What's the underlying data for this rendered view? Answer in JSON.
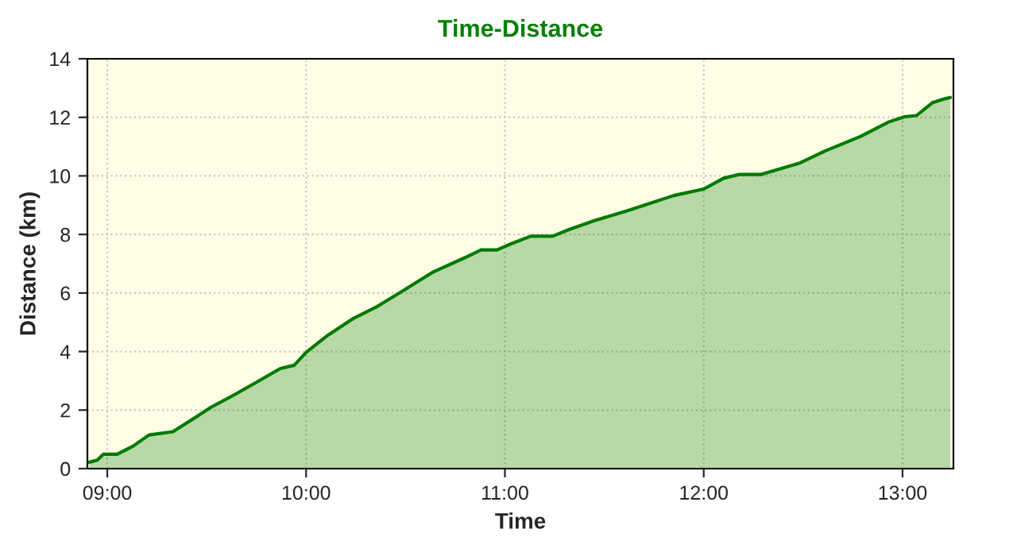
{
  "chart_data": {
    "type": "area",
    "title": "Time-Distance",
    "xlabel": "Time",
    "ylabel": "Distance (km)",
    "x": [
      8.91,
      8.95,
      8.98,
      9.05,
      9.13,
      9.21,
      9.33,
      9.42,
      9.52,
      9.63,
      9.74,
      9.87,
      9.94,
      10.0,
      10.11,
      10.24,
      10.35,
      10.51,
      10.64,
      10.8,
      10.88,
      10.96,
      11.02,
      11.13,
      11.24,
      11.32,
      11.45,
      11.62,
      11.85,
      12.0,
      12.1,
      12.18,
      12.29,
      12.48,
      12.61,
      12.79,
      12.93,
      13.01,
      13.07,
      13.15,
      13.21,
      13.24
    ],
    "series": [
      {
        "color": "#007a00",
        "values": [
          0.22,
          0.29,
          0.49,
          0.49,
          0.77,
          1.15,
          1.26,
          1.65,
          2.09,
          2.49,
          2.91,
          3.42,
          3.53,
          3.97,
          4.56,
          5.14,
          5.51,
          6.17,
          6.72,
          7.21,
          7.47,
          7.47,
          7.65,
          7.94,
          7.94,
          8.16,
          8.47,
          8.82,
          9.33,
          9.55,
          9.92,
          10.05,
          10.05,
          10.43,
          10.85,
          11.35,
          11.84,
          12.02,
          12.06,
          12.5,
          12.63,
          12.68
        ]
      }
    ],
    "xlim": [
      8.9,
      13.256
    ],
    "xticks": [
      {
        "value": 9,
        "label": "09:00"
      },
      {
        "value": 10,
        "label": "10:00"
      },
      {
        "value": 11,
        "label": "11:00"
      },
      {
        "value": 12,
        "label": "12:00"
      },
      {
        "value": 13,
        "label": "13:00"
      }
    ],
    "ylim": [
      0,
      14
    ],
    "yticks": [
      0,
      2,
      4,
      6,
      8,
      10,
      12,
      14
    ],
    "grid": true,
    "legend": false,
    "line_style": "solid",
    "marker": "none"
  }
}
